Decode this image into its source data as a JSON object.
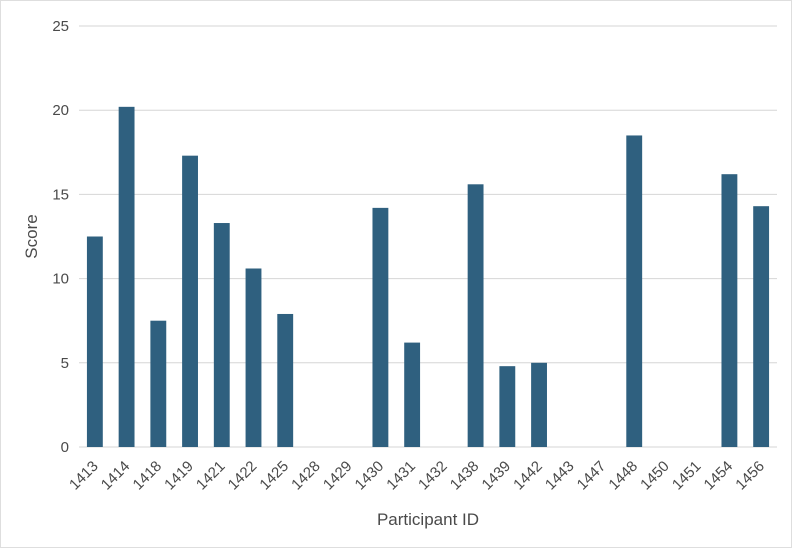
{
  "chart_data": {
    "type": "bar",
    "title": "",
    "xlabel": "Participant ID",
    "ylabel": "Score",
    "ylim": [
      0,
      25
    ],
    "yticks": [
      0,
      5,
      10,
      15,
      20,
      25
    ],
    "grid": "horizontal",
    "bar_color": "#2f607f",
    "categories": [
      "1413",
      "1414",
      "1418",
      "1419",
      "1421",
      "1422",
      "1425",
      "1428",
      "1429",
      "1430",
      "1431",
      "1432",
      "1438",
      "1439",
      "1442",
      "1443",
      "1447",
      "1448",
      "1450",
      "1451",
      "1454",
      "1456"
    ],
    "values": [
      12.5,
      20.2,
      7.5,
      17.3,
      13.3,
      10.6,
      7.9,
      null,
      null,
      14.2,
      6.2,
      null,
      15.6,
      4.8,
      5.0,
      null,
      null,
      18.5,
      null,
      null,
      16.2,
      14.3
    ]
  }
}
